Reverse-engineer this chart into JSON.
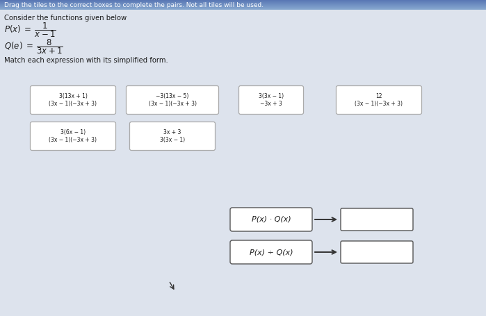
{
  "bg_color": "#dde3ed",
  "header_color_top": "#5a7ab5",
  "header_color_bot": "#8aaad0",
  "title_text": "Drag the tiles to the correct boxes to complete the pairs. Not all tiles will be used.",
  "subtitle_text": "Consider the functions given below",
  "match_text": "Match each expression with its simplified form.",
  "white": "#ffffff",
  "text_dark": "#1a1a1a",
  "box_edge": "#888888",
  "tile_row1": [
    "3(13x + 1)\n(3x − 1)(−3x + 3)",
    "−3(13x − 5)\n(3x − 1)(−3x + 3)",
    "3(3x − 1)\n−3x + 3",
    "12\n(3x − 1)(−3x + 3)"
  ],
  "tile_row2": [
    "3(6x − 1)\n(3x − 1)(−3x + 3)",
    "3x + 3\n3(3x − 1)"
  ],
  "expr1": "P(x) · Q(x)",
  "expr2": "P(x) ÷ Q(x)"
}
